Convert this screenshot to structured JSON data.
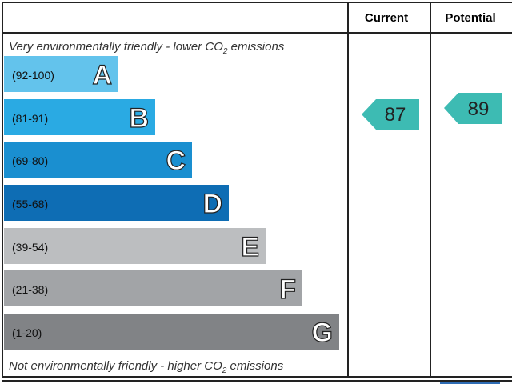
{
  "header": {
    "current": "Current",
    "potential": "Potential"
  },
  "top_text": [
    "Very environmentally friendly - lower CO",
    "2",
    " emissions"
  ],
  "bottom_text": [
    "Not environmentally friendly - higher CO",
    "2",
    " emissions"
  ],
  "bands": [
    {
      "range": "(92-100)",
      "letter": "A"
    },
    {
      "range": "(81-91)",
      "letter": "B"
    },
    {
      "range": "(69-80)",
      "letter": "C"
    },
    {
      "range": "(55-68)",
      "letter": "D"
    },
    {
      "range": "(39-54)",
      "letter": "E"
    },
    {
      "range": "(21-38)",
      "letter": "F"
    },
    {
      "range": "(1-20)",
      "letter": "G"
    }
  ],
  "current": "87",
  "potential": "89"
}
